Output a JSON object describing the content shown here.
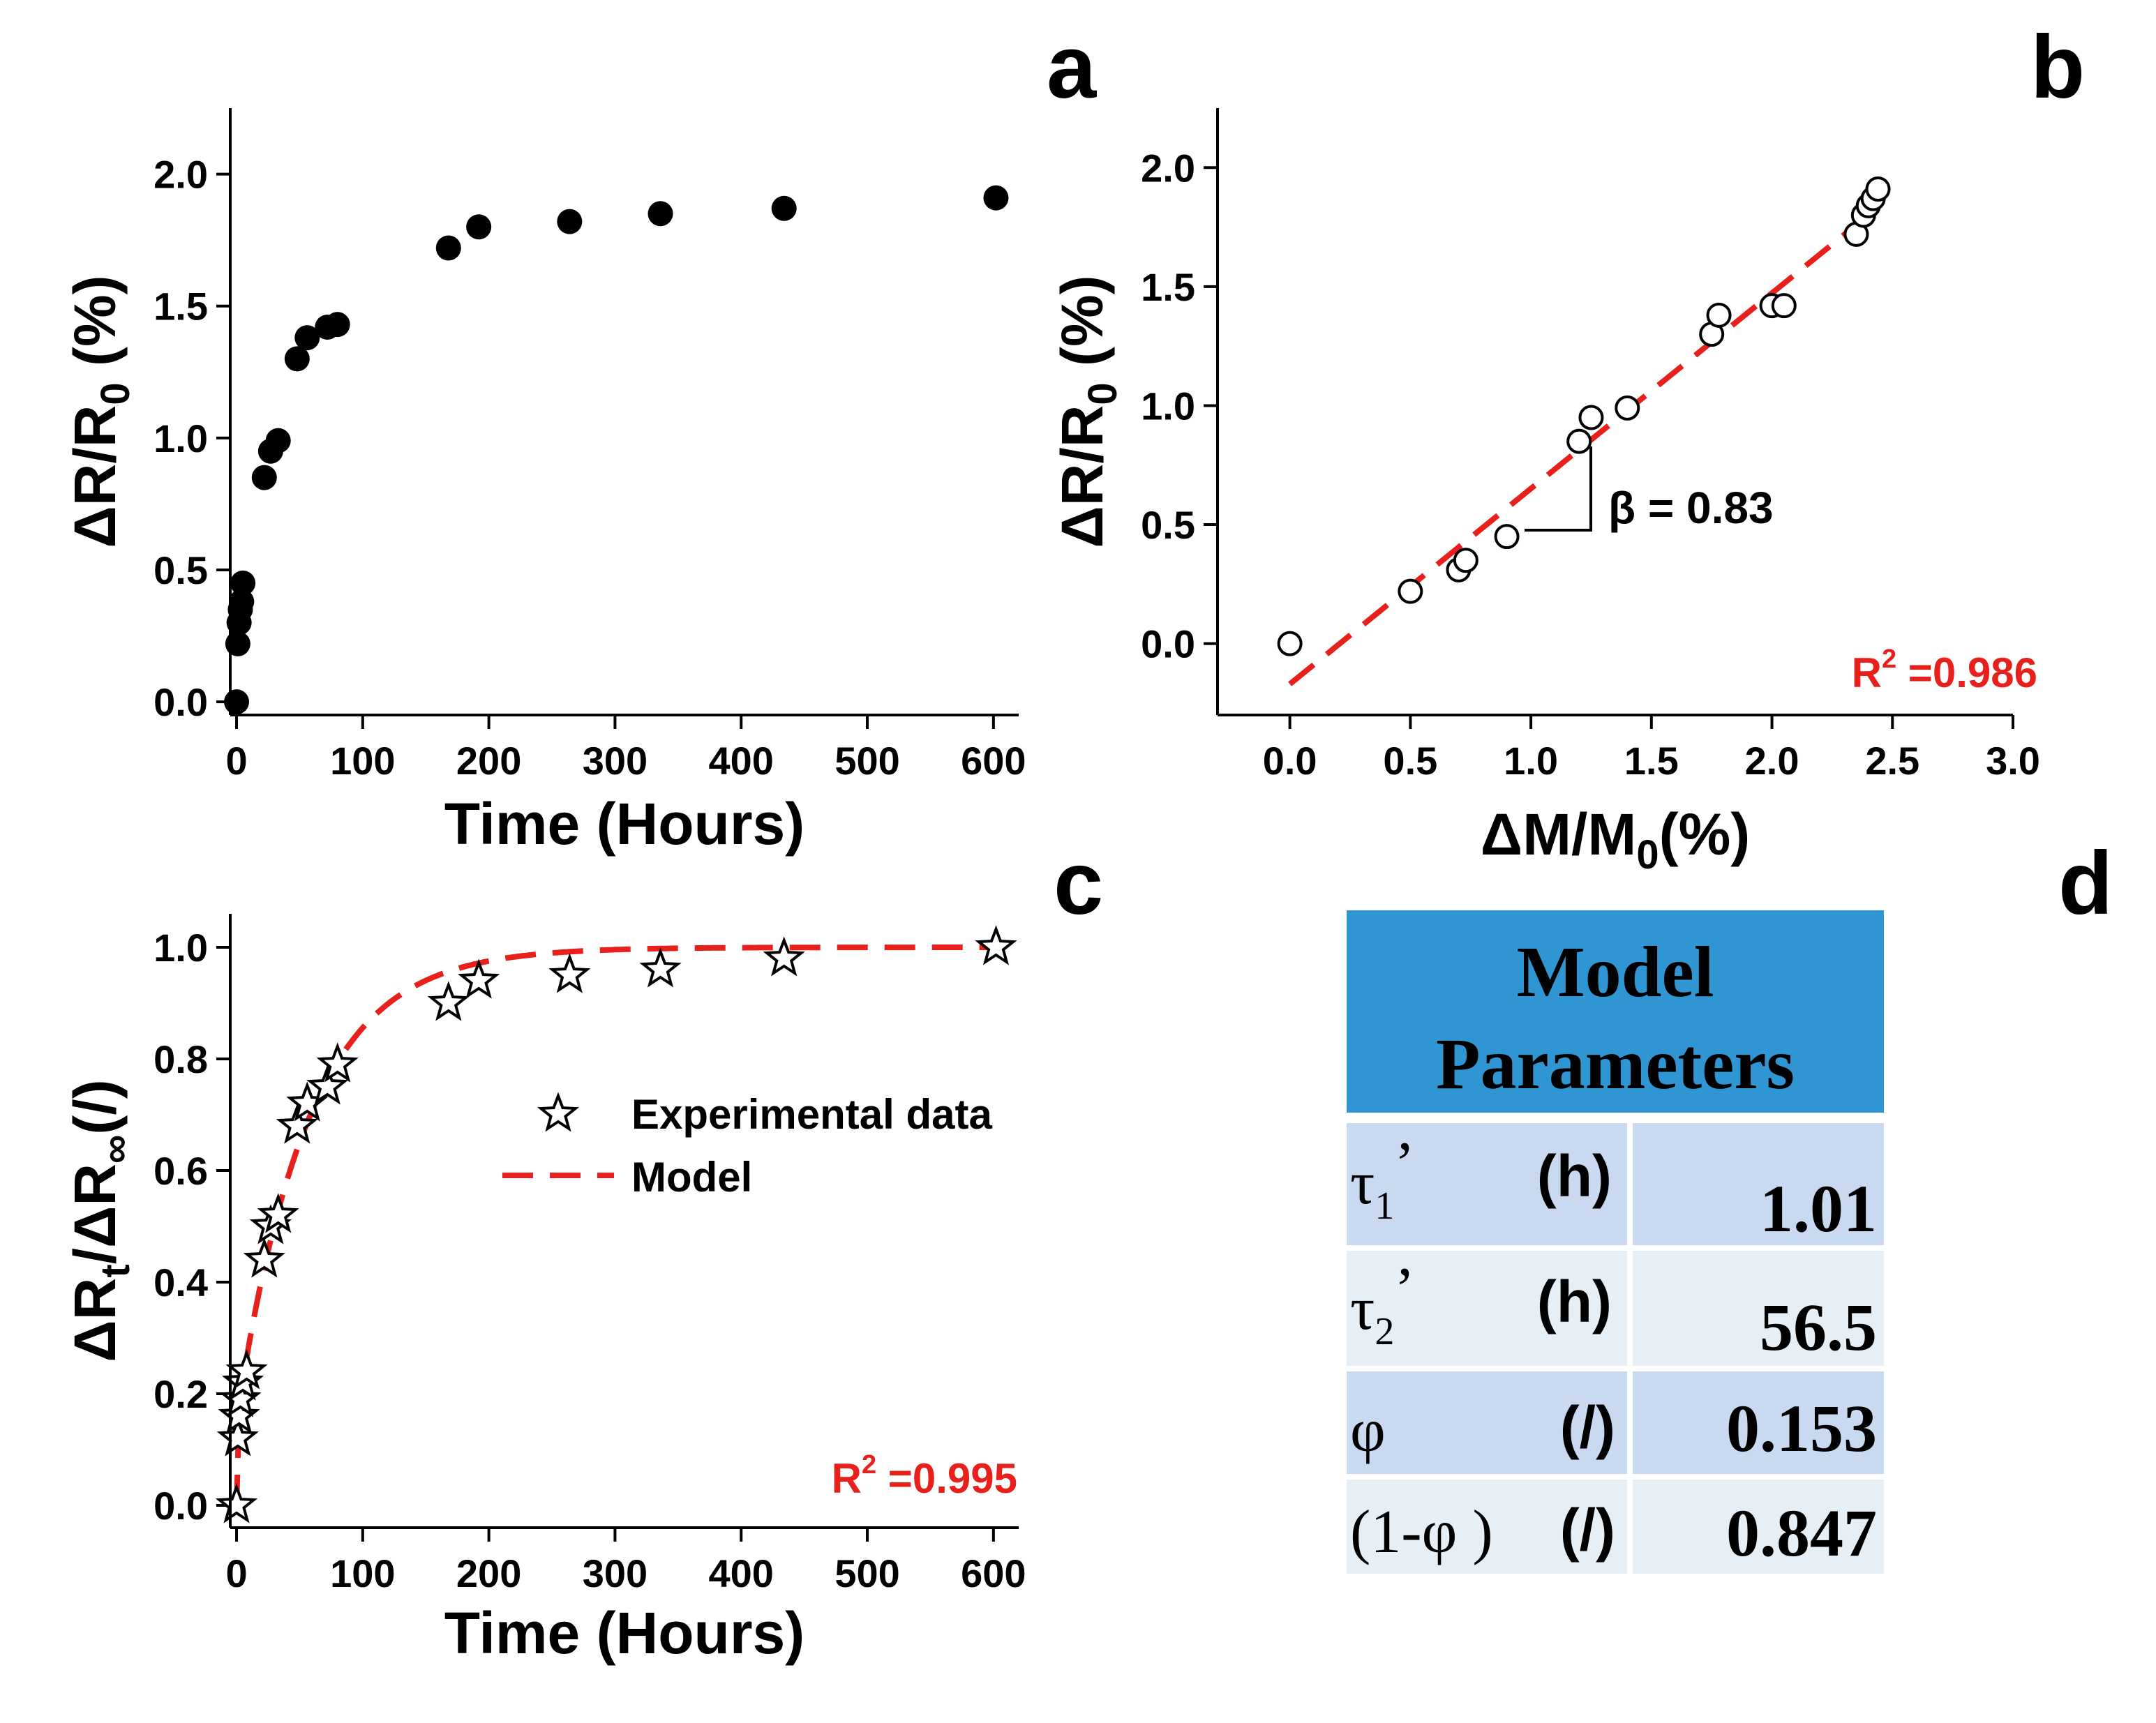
{
  "colors": {
    "fit": "#e8201c",
    "header": "#2f95d3",
    "row_dark": "#c9daf0",
    "row_light": "#e6eef6"
  },
  "chart_data": [
    {
      "panel": "a",
      "type": "scatter",
      "xlabel": "Time (Hours)",
      "ylabel": "ΔR/R0 (%)",
      "ylabel_main": "ΔR/R",
      "ylabel_sub": "0",
      "ylabel_tail": " (%)",
      "xlim": [
        -5,
        620
      ],
      "ylim": [
        -0.05,
        2.25
      ],
      "xticks": [
        0,
        100,
        200,
        300,
        400,
        500,
        600
      ],
      "yticks": [
        0.0,
        0.5,
        1.0,
        1.5,
        2.0
      ],
      "xtick_labels": [
        "0",
        "100",
        "200",
        "300",
        "400",
        "500",
        "600"
      ],
      "ytick_labels": [
        "0.0",
        "0.5",
        "1.0",
        "1.5",
        "2.0"
      ],
      "series": [
        {
          "name": "data",
          "marker": "filled-circle",
          "x": [
            0,
            1,
            2,
            3,
            4,
            5,
            22,
            27,
            33,
            48,
            56,
            72,
            80,
            168,
            192,
            264,
            336,
            434,
            602
          ],
          "y": [
            0.0,
            0.22,
            0.3,
            0.35,
            0.38,
            0.45,
            0.85,
            0.95,
            0.99,
            1.3,
            1.38,
            1.42,
            1.43,
            1.72,
            1.8,
            1.82,
            1.85,
            1.87,
            1.91
          ]
        }
      ]
    },
    {
      "panel": "b",
      "type": "scatter",
      "xlabel": "ΔM/M0(%)",
      "xlabel_main": "ΔM/M",
      "xlabel_sub": "0",
      "xlabel_tail": "(%)",
      "ylabel": "ΔR/R0 (%)",
      "ylabel_main": "ΔR/R",
      "ylabel_sub": "0",
      "ylabel_tail": " (%)",
      "xlim": [
        -0.3,
        3.0
      ],
      "ylim": [
        -0.3,
        2.25
      ],
      "xticks": [
        0.0,
        0.5,
        1.0,
        1.5,
        2.0,
        2.5,
        3.0
      ],
      "yticks": [
        0.0,
        0.5,
        1.0,
        1.5,
        2.0
      ],
      "xtick_labels": [
        "0.0",
        "0.5",
        "1.0",
        "1.5",
        "2.0",
        "2.5",
        "3.0"
      ],
      "ytick_labels": [
        "0.0",
        "0.5",
        "1.0",
        "1.5",
        "2.0"
      ],
      "series": [
        {
          "name": "data",
          "marker": "open-circle",
          "x": [
            0.0,
            0.5,
            0.7,
            0.73,
            0.9,
            1.2,
            1.25,
            1.4,
            1.75,
            1.78,
            2.0,
            2.05,
            2.35,
            2.38,
            2.4,
            2.42,
            2.44
          ],
          "y": [
            0.0,
            0.22,
            0.31,
            0.35,
            0.45,
            0.85,
            0.95,
            0.99,
            1.3,
            1.38,
            1.42,
            1.42,
            1.72,
            1.8,
            1.84,
            1.87,
            1.91
          ]
        },
        {
          "name": "fit",
          "style": "red-dashed",
          "x": [
            0.0,
            2.35
          ],
          "y": [
            -0.17,
            1.76
          ]
        }
      ],
      "annotation": "β = 0.83",
      "r2_label": "R",
      "r2_sup": "2",
      "r2_value": " =0.986"
    },
    {
      "panel": "c",
      "type": "scatter",
      "xlabel": "Time (Hours)",
      "ylabel": "ΔRt/ΔR∞(/)",
      "ylabel_a": "ΔR",
      "ylabel_sub": "t",
      "ylabel_b": "/ΔR",
      "ylabel_sub2": "∞",
      "ylabel_tail": "(/)",
      "xlim": [
        -5,
        620
      ],
      "ylim": [
        -0.04,
        1.06
      ],
      "xticks": [
        0,
        100,
        200,
        300,
        400,
        500,
        600
      ],
      "yticks": [
        0.0,
        0.2,
        0.4,
        0.6,
        0.8,
        1.0
      ],
      "xtick_labels": [
        "0",
        "100",
        "200",
        "300",
        "400",
        "500",
        "600"
      ],
      "ytick_labels": [
        "0.0",
        "0.2",
        "0.4",
        "0.6",
        "0.8",
        "1.0"
      ],
      "series": [
        {
          "name": "Experimental data",
          "marker": "open-star",
          "x": [
            0,
            1,
            2,
            3,
            5,
            8,
            22,
            27,
            33,
            48,
            56,
            72,
            80,
            168,
            192,
            264,
            336,
            434,
            602
          ],
          "y": [
            0.0,
            0.12,
            0.16,
            0.19,
            0.22,
            0.24,
            0.44,
            0.5,
            0.52,
            0.68,
            0.72,
            0.75,
            0.79,
            0.9,
            0.94,
            0.95,
            0.96,
            0.98,
            1.0
          ]
        },
        {
          "name": "Model",
          "style": "red-dashed",
          "model": {
            "phi": 0.153,
            "tau1": 1.01,
            "tau2": 56.5
          }
        }
      ],
      "legend": [
        "Experimental data",
        "Model"
      ],
      "r2_label": "R",
      "r2_sup": "2",
      "r2_value": " =0.995"
    }
  ],
  "panel_letters": {
    "a": "a",
    "b": "b",
    "c": "c",
    "d": "d"
  },
  "table": {
    "header_line1": "Model",
    "header_line2": "Parameters",
    "rows": [
      {
        "sym": "τ",
        "sub": "1",
        "prime": "’",
        "unit": "(h)",
        "value": "1.01"
      },
      {
        "sym": "τ",
        "sub": "2",
        "prime": "’",
        "unit": "(h)",
        "value": "56.5"
      },
      {
        "sym": "φ",
        "unit": "(/)",
        "value": "0.153"
      },
      {
        "sym": "(1-φ )",
        "unit": "(/)",
        "value": "0.847"
      }
    ]
  }
}
